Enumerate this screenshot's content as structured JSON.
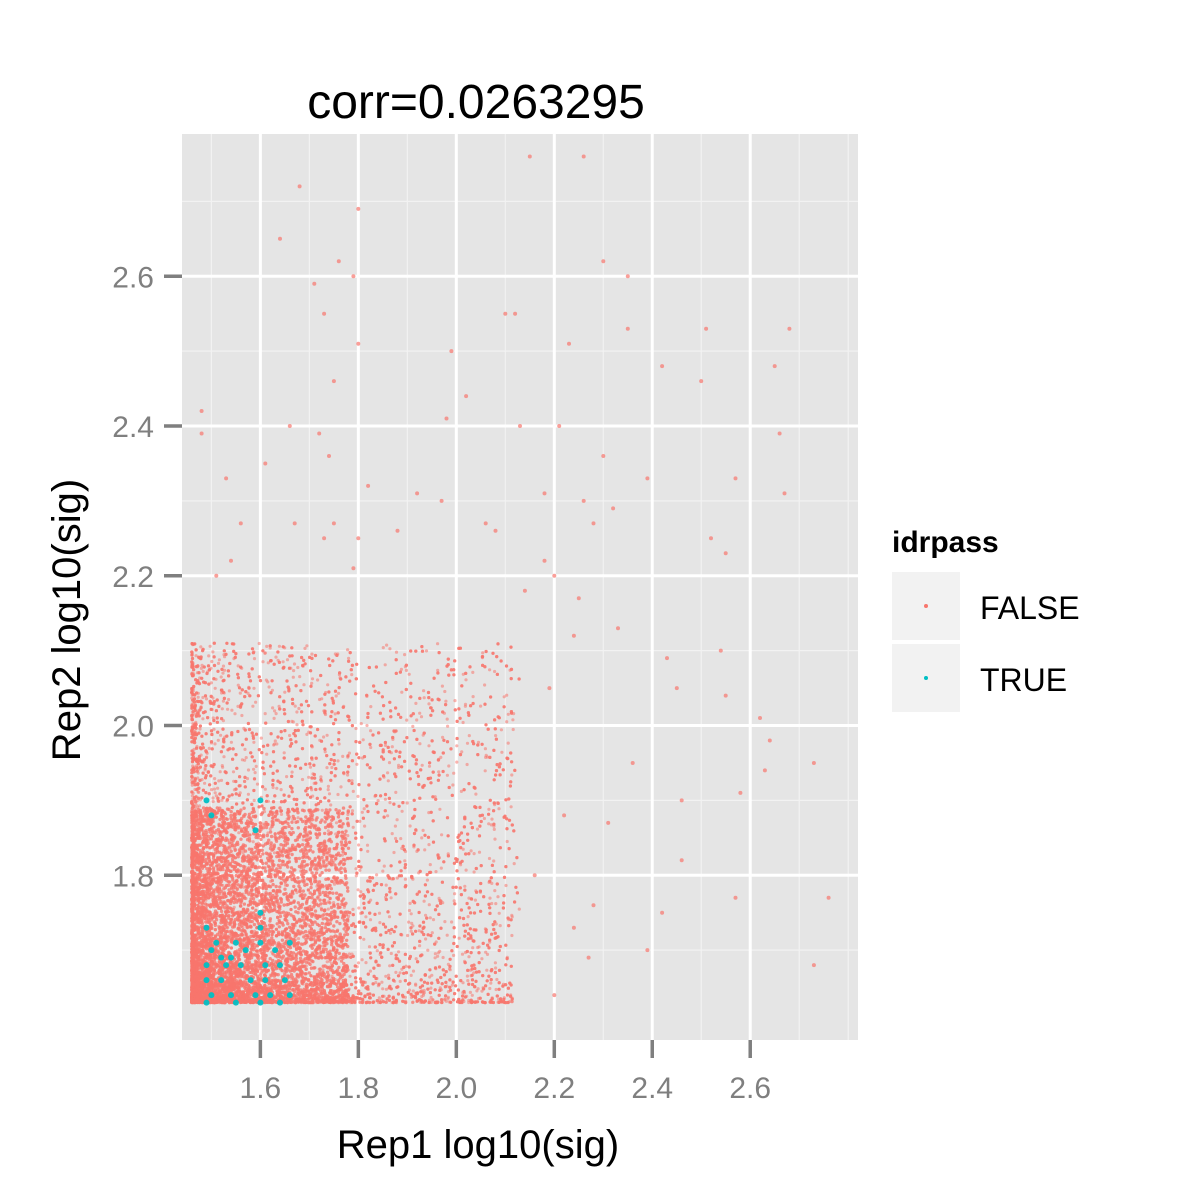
{
  "chart_data": {
    "type": "scatter",
    "title": "corr=0.0263295",
    "xlabel": "Rep1 log10(sig)",
    "ylabel": "Rep2 log10(sig)",
    "xlim": [
      1.44,
      2.82
    ],
    "ylim": [
      1.58,
      2.79
    ],
    "x_ticks": [
      1.6,
      1.8,
      2.0,
      2.2,
      2.4,
      2.6
    ],
    "x_tick_labels": [
      "1.6",
      "1.8",
      "2.0",
      "2.2",
      "2.4",
      "2.6"
    ],
    "y_ticks": [
      1.8,
      2.0,
      2.2,
      2.4,
      2.6
    ],
    "y_tick_labels": [
      "1.8",
      "2.0",
      "2.2",
      "2.4",
      "2.6"
    ],
    "grid": true,
    "legend": {
      "title": "idrpass",
      "placement": "right",
      "entries": [
        {
          "label": "FALSE",
          "color": "#F8766D"
        },
        {
          "label": "TRUE",
          "color": "#00BFC4"
        }
      ]
    },
    "series": [
      {
        "name": "FALSE",
        "color": "#F8766D",
        "points": [
          [
            1.48,
            2.42
          ],
          [
            1.48,
            2.39
          ],
          [
            1.53,
            2.33
          ],
          [
            1.56,
            2.27
          ],
          [
            1.54,
            2.22
          ],
          [
            1.51,
            2.2
          ],
          [
            1.64,
            2.65
          ],
          [
            1.68,
            2.72
          ],
          [
            1.71,
            2.59
          ],
          [
            1.73,
            2.55
          ],
          [
            1.76,
            2.62
          ],
          [
            1.79,
            2.6
          ],
          [
            1.8,
            2.69
          ],
          [
            1.8,
            2.51
          ],
          [
            1.75,
            2.46
          ],
          [
            1.66,
            2.4
          ],
          [
            1.72,
            2.39
          ],
          [
            1.74,
            2.36
          ],
          [
            1.61,
            2.35
          ],
          [
            1.67,
            2.27
          ],
          [
            1.73,
            2.25
          ],
          [
            1.75,
            2.27
          ],
          [
            1.8,
            2.25
          ],
          [
            1.79,
            2.21
          ],
          [
            1.82,
            2.32
          ],
          [
            1.88,
            2.26
          ],
          [
            1.92,
            2.31
          ],
          [
            1.97,
            2.3
          ],
          [
            1.99,
            2.5
          ],
          [
            2.02,
            2.44
          ],
          [
            1.98,
            2.41
          ],
          [
            2.06,
            2.27
          ],
          [
            2.08,
            2.26
          ],
          [
            2.1,
            2.55
          ],
          [
            2.12,
            2.55
          ],
          [
            2.13,
            2.4
          ],
          [
            2.15,
            2.76
          ],
          [
            2.18,
            2.31
          ],
          [
            2.18,
            2.22
          ],
          [
            2.2,
            2.2
          ],
          [
            2.21,
            2.4
          ],
          [
            2.23,
            2.51
          ],
          [
            2.26,
            2.76
          ],
          [
            2.26,
            2.3
          ],
          [
            2.28,
            2.27
          ],
          [
            2.3,
            2.36
          ],
          [
            2.3,
            2.62
          ],
          [
            2.32,
            2.29
          ],
          [
            2.33,
            2.13
          ],
          [
            2.35,
            2.6
          ],
          [
            2.35,
            2.53
          ],
          [
            2.39,
            2.33
          ],
          [
            2.42,
            2.48
          ],
          [
            2.45,
            2.05
          ],
          [
            2.46,
            1.9
          ],
          [
            2.46,
            1.82
          ],
          [
            2.5,
            2.46
          ],
          [
            2.51,
            2.53
          ],
          [
            2.52,
            2.25
          ],
          [
            2.54,
            2.1
          ],
          [
            2.55,
            2.04
          ],
          [
            2.57,
            2.33
          ],
          [
            2.58,
            1.91
          ],
          [
            2.62,
            2.01
          ],
          [
            2.63,
            1.94
          ],
          [
            2.64,
            1.98
          ],
          [
            2.65,
            2.48
          ],
          [
            2.66,
            2.39
          ],
          [
            2.67,
            2.31
          ],
          [
            2.68,
            2.53
          ],
          [
            2.73,
            1.95
          ],
          [
            2.76,
            1.77
          ],
          [
            2.73,
            1.68
          ],
          [
            2.57,
            1.77
          ],
          [
            2.42,
            1.75
          ],
          [
            2.39,
            1.7
          ],
          [
            2.27,
            1.69
          ],
          [
            2.24,
            1.73
          ],
          [
            2.2,
            1.64
          ],
          [
            2.16,
            1.8
          ],
          [
            2.22,
            1.88
          ],
          [
            2.28,
            1.76
          ],
          [
            2.31,
            1.87
          ],
          [
            2.36,
            1.95
          ],
          [
            2.19,
            2.05
          ],
          [
            2.24,
            2.12
          ],
          [
            2.14,
            2.18
          ],
          [
            2.25,
            2.17
          ],
          [
            2.43,
            2.09
          ],
          [
            2.55,
            2.23
          ]
        ]
      },
      {
        "name": "TRUE",
        "color": "#00BFC4",
        "points": [
          [
            1.49,
            1.9
          ],
          [
            1.5,
            1.88
          ],
          [
            1.49,
            1.73
          ],
          [
            1.5,
            1.7
          ],
          [
            1.52,
            1.69
          ],
          [
            1.55,
            1.71
          ],
          [
            1.57,
            1.7
          ],
          [
            1.6,
            1.71
          ],
          [
            1.63,
            1.7
          ],
          [
            1.66,
            1.71
          ],
          [
            1.49,
            1.68
          ],
          [
            1.53,
            1.68
          ],
          [
            1.56,
            1.68
          ],
          [
            1.61,
            1.68
          ],
          [
            1.64,
            1.68
          ],
          [
            1.49,
            1.66
          ],
          [
            1.52,
            1.66
          ],
          [
            1.58,
            1.66
          ],
          [
            1.61,
            1.66
          ],
          [
            1.65,
            1.66
          ],
          [
            1.5,
            1.64
          ],
          [
            1.54,
            1.64
          ],
          [
            1.59,
            1.64
          ],
          [
            1.62,
            1.64
          ],
          [
            1.66,
            1.64
          ],
          [
            1.49,
            1.63
          ],
          [
            1.55,
            1.63
          ],
          [
            1.6,
            1.63
          ],
          [
            1.64,
            1.63
          ],
          [
            1.6,
            1.75
          ],
          [
            1.6,
            1.73
          ],
          [
            1.59,
            1.86
          ],
          [
            1.6,
            1.9
          ],
          [
            1.51,
            1.71
          ],
          [
            1.54,
            1.69
          ]
        ]
      }
    ]
  }
}
